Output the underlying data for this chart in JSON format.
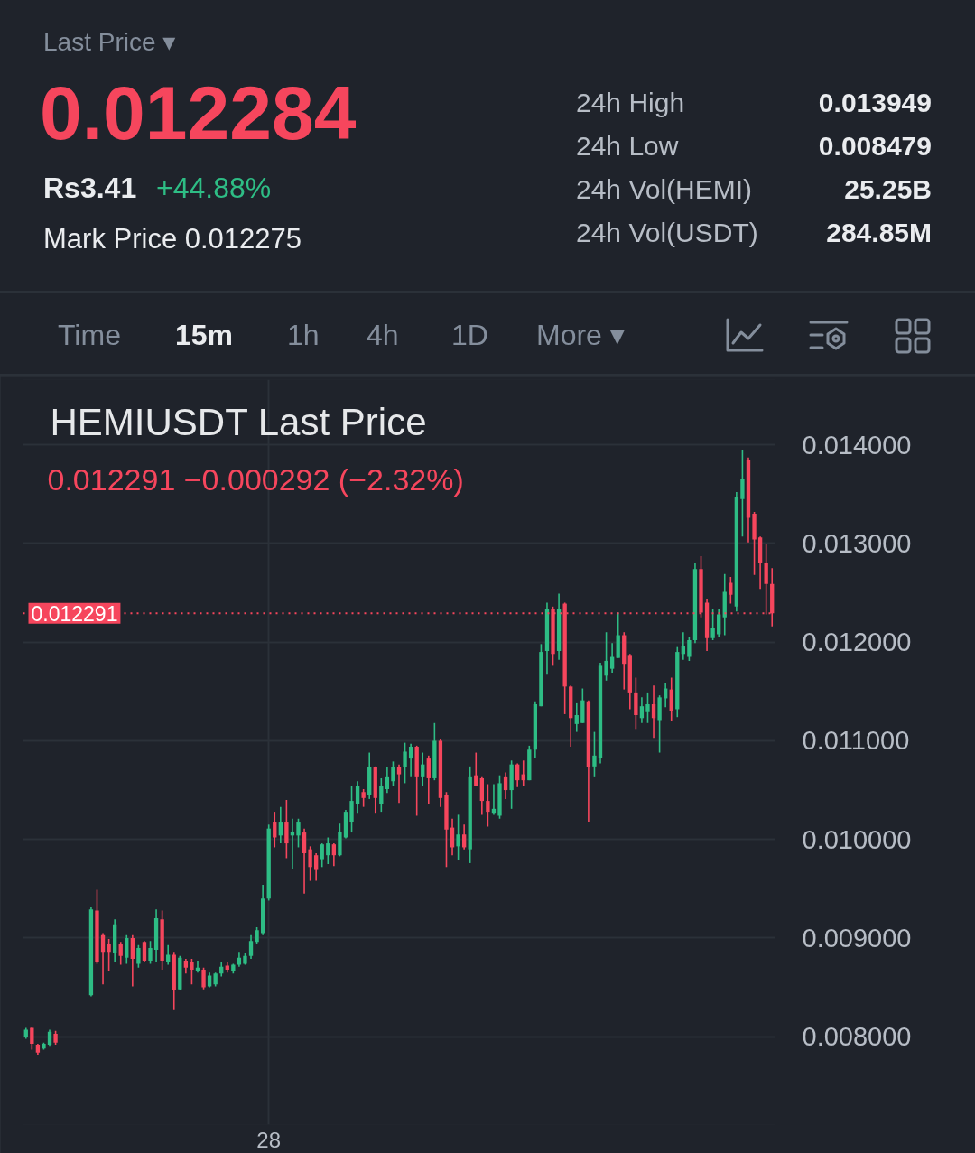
{
  "chart_data": {
    "type": "candlestick",
    "title": "HEMIUSDT Last Price",
    "subtitle": "0.012291  −0.000292 (−2.32%)",
    "annotations": [
      "Last Price ▾",
      "0.012284",
      "Rs3.41",
      "+44.88%",
      "Mark Price 0.012275",
      "24h High",
      "0.013949",
      "24h Low",
      "0.008479",
      "24h Vol(HEMI)",
      "25.25B",
      "24h Vol(USDT)",
      "284.85M",
      "Time",
      "15m",
      "1h",
      "4h",
      "1D",
      "More ▾"
    ],
    "categories": [
      null,
      null,
      null,
      null,
      null,
      null,
      null,
      null,
      null,
      null,
      null,
      null,
      null,
      null,
      null,
      null,
      null,
      null,
      null,
      null,
      null,
      null,
      null,
      null,
      null,
      null,
      null,
      null,
      null,
      null,
      null,
      null,
      null,
      null,
      null,
      null,
      null,
      null,
      null,
      null,
      null,
      "28",
      null,
      null,
      null,
      null,
      null,
      null,
      null,
      null,
      null,
      null,
      null,
      null,
      null,
      null,
      null,
      null,
      null,
      null,
      null,
      null,
      null,
      null,
      null,
      null,
      null,
      null,
      null,
      null,
      null,
      null,
      null,
      null,
      null,
      null,
      null,
      null,
      null,
      null,
      null,
      null,
      null,
      null,
      null,
      null,
      null,
      null,
      null,
      null,
      null,
      null,
      null,
      null,
      null,
      null,
      null,
      null,
      null,
      null,
      null,
      null,
      null,
      null,
      null,
      null,
      null,
      null,
      null,
      null,
      null,
      null,
      null,
      null,
      null,
      null,
      null,
      null,
      null,
      null,
      null,
      null,
      null,
      null,
      null,
      null,
      null
    ],
    "ohlc": [
      [
        0.008,
        0.00809,
        0.00798,
        0.00807
      ],
      [
        0.00809,
        0.0081,
        0.00787,
        0.00793
      ],
      [
        0.00792,
        0.00793,
        0.00781,
        0.00784
      ],
      [
        0.00788,
        0.00794,
        0.00787,
        0.00793
      ],
      [
        0.00792,
        0.00807,
        0.0079,
        0.00805
      ],
      [
        0.00803,
        0.00806,
        0.00792,
        0.00794
      ],
      null,
      null,
      null,
      null,
      null,
      [
        0.00842,
        0.00931,
        0.00841,
        0.00929
      ],
      [
        0.00928,
        0.00949,
        0.00874,
        0.00876
      ],
      [
        0.00903,
        0.00905,
        0.00853,
        0.00886
      ],
      [
        0.00894,
        0.00899,
        0.00867,
        0.00886
      ],
      [
        0.00885,
        0.00919,
        0.00876,
        0.00914
      ],
      [
        0.00894,
        0.00896,
        0.00873,
        0.00882
      ],
      [
        0.0088,
        0.00903,
        0.00874,
        0.009
      ],
      [
        0.009,
        0.00903,
        0.00851,
        0.00879
      ],
      [
        0.00874,
        0.00893,
        0.0087,
        0.0089
      ],
      [
        0.00896,
        0.00897,
        0.00876,
        0.00877
      ],
      [
        0.00877,
        0.00897,
        0.00874,
        0.0089
      ],
      [
        0.00888,
        0.00929,
        0.00876,
        0.0092
      ],
      [
        0.00919,
        0.00928,
        0.00868,
        0.00877
      ],
      [
        0.00876,
        0.00893,
        0.00873,
        0.00883
      ],
      [
        0.00883,
        0.00886,
        0.00827,
        0.00847
      ],
      [
        0.00848,
        0.00882,
        0.00847,
        0.0088
      ],
      [
        0.00877,
        0.00879,
        0.00864,
        0.0087
      ],
      [
        0.00876,
        0.00879,
        0.00853,
        0.00868
      ],
      [
        0.00867,
        0.00877,
        0.00865,
        0.0087
      ],
      [
        0.00868,
        0.0087,
        0.00848,
        0.0085
      ],
      [
        0.00851,
        0.00865,
        0.0085,
        0.00862
      ],
      [
        0.00853,
        0.00865,
        0.00851,
        0.00864
      ],
      [
        0.00864,
        0.00876,
        0.00861,
        0.00871
      ],
      [
        0.00872,
        0.00876,
        0.00865,
        0.00868
      ],
      [
        0.00867,
        0.00874,
        0.00864,
        0.00873
      ],
      [
        0.00873,
        0.00886,
        0.00871,
        0.0088
      ],
      [
        0.00874,
        0.00885,
        0.00873,
        0.00882
      ],
      [
        0.00882,
        0.00903,
        0.00879,
        0.00897
      ],
      [
        0.00896,
        0.00911,
        0.00894,
        0.00908
      ],
      [
        0.00905,
        0.00954,
        0.00903,
        0.0094
      ],
      [
        0.0094,
        0.01015,
        0.00938,
        0.01011
      ],
      [
        0.01018,
        0.01028,
        0.00992,
        0.01002
      ],
      [
        0.01004,
        0.01033,
        0.00996,
        0.01018
      ],
      [
        0.01018,
        0.0104,
        0.00981,
        0.00996
      ],
      [
        0.01004,
        0.01021,
        0.0097,
        0.01008
      ],
      [
        0.01004,
        0.01021,
        0.00992,
        0.01018
      ],
      [
        0.01007,
        0.01011,
        0.00945,
        0.00986
      ],
      [
        0.0099,
        0.00993,
        0.00958,
        0.00972
      ],
      [
        0.00984,
        0.00986,
        0.00958,
        0.00969
      ],
      [
        0.0098,
        0.00996,
        0.00972,
        0.00995
      ],
      [
        0.00984,
        0.01002,
        0.00975,
        0.00996
      ],
      [
        0.00995,
        0.00996,
        0.00973,
        0.00984
      ],
      [
        0.00984,
        0.01016,
        0.00983,
        0.01008
      ],
      [
        0.01002,
        0.0103,
        0.01001,
        0.01028
      ],
      [
        0.01018,
        0.01054,
        0.01007,
        0.01039
      ],
      [
        0.01036,
        0.01059,
        0.01027,
        0.01054
      ],
      [
        0.01048,
        0.01051,
        0.01033,
        0.01042
      ],
      [
        0.01045,
        0.01088,
        0.01041,
        0.01073
      ],
      [
        0.01073,
        0.01074,
        0.01027,
        0.01042
      ],
      [
        0.01036,
        0.01062,
        0.01028,
        0.01054
      ],
      [
        0.01051,
        0.01073,
        0.01047,
        0.01063
      ],
      [
        0.01059,
        0.01079,
        0.01054,
        0.01073
      ],
      [
        0.01073,
        0.01076,
        0.01037,
        0.01066
      ],
      [
        0.01073,
        0.01098,
        0.01057,
        0.01089
      ],
      [
        0.01082,
        0.01097,
        0.01063,
        0.01094
      ],
      [
        0.01094,
        0.01095,
        0.01024,
        0.01063
      ],
      [
        0.01063,
        0.01088,
        0.01054,
        0.01076
      ],
      [
        0.01082,
        0.01085,
        0.01036,
        0.01062
      ],
      [
        0.01062,
        0.01118,
        0.0106,
        0.011
      ],
      [
        0.011,
        0.01102,
        0.01033,
        0.01042
      ],
      [
        0.01045,
        0.01048,
        0.00972,
        0.0101
      ],
      [
        0.01012,
        0.01021,
        0.00984,
        0.00992
      ],
      [
        0.00993,
        0.01025,
        0.00979,
        0.01005
      ],
      [
        0.01005,
        0.01015,
        0.0099,
        0.00992
      ],
      [
        0.0099,
        0.01074,
        0.00976,
        0.01063
      ],
      [
        0.01065,
        0.01088,
        0.01054,
        0.01054
      ],
      [
        0.01062,
        0.01063,
        0.01025,
        0.01039
      ],
      [
        0.01039,
        0.01056,
        0.01013,
        0.01028
      ],
      [
        0.01027,
        0.01056,
        0.01025,
        0.01031
      ],
      [
        0.01024,
        0.01065,
        0.01021,
        0.01057
      ],
      [
        0.01063,
        0.01068,
        0.01041,
        0.0105
      ],
      [
        0.0105,
        0.0108,
        0.01031,
        0.01076
      ],
      [
        0.01076,
        0.01077,
        0.01053,
        0.0106
      ],
      [
        0.01066,
        0.0108,
        0.01054,
        0.0106
      ],
      [
        0.0106,
        0.01095,
        0.0106,
        0.01091
      ],
      [
        0.01091,
        0.0114,
        0.01083,
        0.01137
      ],
      [
        0.01135,
        0.01198,
        0.01135,
        0.0119
      ],
      [
        0.01191,
        0.0124,
        0.01167,
        0.01234
      ],
      [
        0.01234,
        0.01236,
        0.01176,
        0.01188
      ],
      [
        0.01191,
        0.01249,
        0.01182,
        0.01234
      ],
      [
        0.01239,
        0.0124,
        0.01127,
        0.01155
      ],
      [
        0.01155,
        0.01156,
        0.01094,
        0.01123
      ],
      [
        0.01117,
        0.01138,
        0.01109,
        0.01126
      ],
      [
        0.01118,
        0.01153,
        0.01118,
        0.01141
      ],
      [
        0.0114,
        0.01141,
        0.01018,
        0.01073
      ],
      [
        0.01074,
        0.01109,
        0.01063,
        0.01085
      ],
      [
        0.01083,
        0.01179,
        0.01077,
        0.01176
      ],
      [
        0.01166,
        0.0121,
        0.01161,
        0.01181
      ],
      [
        0.01173,
        0.01199,
        0.01169,
        0.01185
      ],
      [
        0.01184,
        0.0123,
        0.01184,
        0.01207
      ],
      [
        0.01207,
        0.0121,
        0.01152,
        0.01178
      ],
      [
        0.01187,
        0.01188,
        0.01132,
        0.01149
      ],
      [
        0.01149,
        0.01164,
        0.01112,
        0.01126
      ],
      [
        0.01123,
        0.01144,
        0.01118,
        0.01135
      ],
      [
        0.01129,
        0.01149,
        0.01118,
        0.01137
      ],
      [
        0.01137,
        0.01156,
        0.01103,
        0.01123
      ],
      [
        0.01121,
        0.01146,
        0.01088,
        0.01144
      ],
      [
        0.01143,
        0.01158,
        0.01134,
        0.01153
      ],
      [
        0.01152,
        0.01164,
        0.0112,
        0.0113
      ],
      [
        0.01132,
        0.01195,
        0.01124,
        0.0119
      ],
      [
        0.01188,
        0.0121,
        0.01182,
        0.01196
      ],
      [
        0.01185,
        0.01205,
        0.01181,
        0.01202
      ],
      [
        0.01202,
        0.0128,
        0.01199,
        0.01274
      ],
      [
        0.01274,
        0.01287,
        0.01225,
        0.0123
      ],
      [
        0.0124,
        0.01244,
        0.01191,
        0.01204
      ],
      [
        0.01204,
        0.01234,
        0.01202,
        0.01214
      ],
      [
        0.01208,
        0.01234,
        0.01205,
        0.01228
      ],
      [
        0.01225,
        0.01269,
        0.01207,
        0.01251
      ],
      [
        0.0126,
        0.01266,
        0.01239,
        0.01248
      ],
      [
        0.01236,
        0.01352,
        0.01231,
        0.01347
      ],
      [
        0.01345,
        0.01395,
        0.01307,
        0.01365
      ],
      [
        0.01385,
        0.01387,
        0.01301,
        0.01326
      ],
      [
        0.0133,
        0.01332,
        0.01268,
        0.01304
      ],
      [
        0.01306,
        0.01307,
        0.01254,
        0.0128
      ],
      [
        0.0128,
        0.013,
        0.01228,
        0.01259
      ],
      [
        0.01259,
        0.01275,
        0.01216,
        0.012291
      ]
    ],
    "colors": [
      "#2ebd85",
      "#f6465d",
      "#f6465d",
      "#2ebd85",
      "#2ebd85",
      "#f6465d",
      null,
      null,
      null,
      null,
      null,
      "#2ebd85",
      "#f6465d",
      "#f6465d",
      "#f6465d",
      "#2ebd85",
      "#f6465d",
      "#2ebd85",
      "#f6465d",
      "#2ebd85",
      "#f6465d",
      "#2ebd85",
      "#2ebd85",
      "#f6465d",
      "#2ebd85",
      "#f6465d",
      "#2ebd85",
      "#f6465d",
      "#f6465d",
      "#2ebd85",
      "#f6465d",
      "#2ebd85",
      "#2ebd85",
      "#2ebd85",
      "#f6465d",
      "#2ebd85",
      "#2ebd85",
      "#2ebd85",
      "#2ebd85",
      "#2ebd85",
      "#2ebd85",
      "#2ebd85",
      "#f6465d",
      "#2ebd85",
      "#f6465d",
      "#2ebd85",
      "#2ebd85",
      "#f6465d",
      "#f6465d",
      "#f6465d",
      "#2ebd85",
      "#2ebd85",
      "#f6465d",
      "#2ebd85",
      "#2ebd85",
      "#2ebd85",
      "#2ebd85",
      "#f6465d",
      "#2ebd85",
      "#f6465d",
      "#2ebd85",
      "#2ebd85",
      "#2ebd85",
      "#f6465d",
      "#2ebd85",
      "#2ebd85",
      "#f6465d",
      "#2ebd85",
      "#f6465d",
      "#2ebd85",
      "#f6465d",
      "#f6465d",
      "#f6465d",
      "#2ebd85",
      "#f6465d",
      "#2ebd85",
      "#f6465d",
      "#f6465d",
      "#f6465d",
      "#2ebd85",
      "#2ebd85",
      "#f6465d",
      "#2ebd85",
      "#f6465d",
      "#f6465d",
      "#2ebd85",
      "#2ebd85",
      "#2ebd85",
      "#2ebd85",
      "#f6465d",
      "#2ebd85",
      "#f6465d",
      "#f6465d",
      "#2ebd85",
      "#2ebd85",
      "#f6465d",
      "#2ebd85",
      "#2ebd85",
      "#2ebd85",
      "#2ebd85",
      "#2ebd85",
      "#f6465d",
      "#f6465d",
      "#f6465d",
      "#2ebd85",
      "#2ebd85",
      "#f6465d",
      "#2ebd85",
      "#2ebd85",
      "#f6465d",
      "#2ebd85",
      "#2ebd85",
      "#2ebd85",
      "#2ebd85",
      "#f6465d",
      "#f6465d",
      "#2ebd85",
      "#2ebd85",
      "#2ebd85",
      "#f6465d",
      "#2ebd85",
      "#2ebd85",
      "#f6465d",
      "#f6465d",
      "#f6465d",
      "#f6465d",
      "#f6465d"
    ],
    "ylim": [
      0.00711,
      0.01466
    ],
    "yticks": [
      {
        "value": 0.008,
        "label": "0.008000"
      },
      {
        "value": 0.009,
        "label": "0.009000"
      },
      {
        "value": 0.01,
        "label": "0.010000"
      },
      {
        "value": 0.011,
        "label": "0.011000"
      },
      {
        "value": 0.012,
        "label": "0.012000"
      },
      {
        "value": 0.013,
        "label": "0.013000"
      },
      {
        "value": 0.014,
        "label": "0.014000"
      }
    ],
    "grid": true,
    "ref_lines": [
      {
        "axis": "y",
        "value": 0.012291,
        "label": "0.012291",
        "color": "#f6465d",
        "line_style": "dotted"
      }
    ]
  }
}
